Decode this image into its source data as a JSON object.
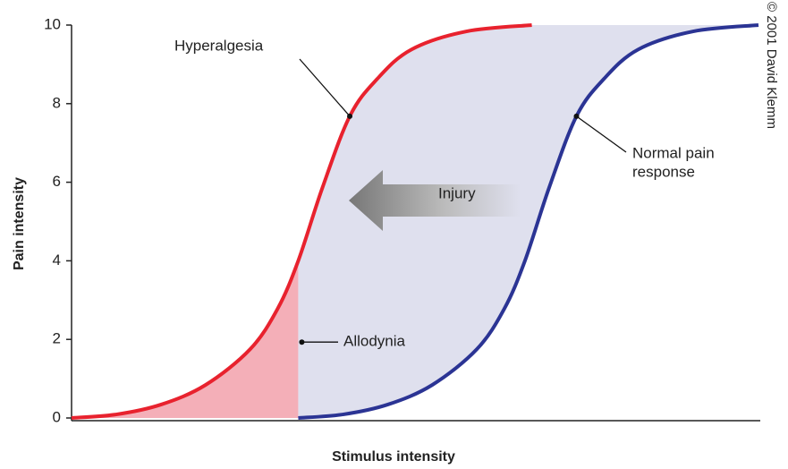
{
  "chart_data": {
    "type": "line",
    "ylabel": "Pain intensity",
    "xlabel": "Stimulus intensity",
    "credit": "© 2001 David Klemm",
    "xlim": [
      0,
      100
    ],
    "ylim": [
      0,
      10
    ],
    "yticks": [
      0,
      2,
      4,
      6,
      8,
      10
    ],
    "series": [
      {
        "name": "Hyperalgesia",
        "color": "#e8222e",
        "x": [
          0,
          6.5,
          13,
          19.5,
          26,
          30,
          33,
          36.5,
          40.5,
          44.5,
          49.5,
          57.5,
          67
        ],
        "values": [
          0,
          0.09,
          0.34,
          0.84,
          1.75,
          2.78,
          4.0,
          5.85,
          7.68,
          8.63,
          9.38,
          9.84,
          10
        ]
      },
      {
        "name": [
          "Normal pain",
          "response"
        ],
        "color": "#2b3494",
        "x": [
          33,
          39.5,
          46,
          52.5,
          59,
          63,
          66,
          69.5,
          73.5,
          77.5,
          82.5,
          90.5,
          100
        ],
        "values": [
          0,
          0.09,
          0.34,
          0.84,
          1.75,
          2.78,
          4.0,
          5.85,
          7.68,
          8.63,
          9.38,
          9.84,
          10
        ]
      }
    ],
    "annotations": [
      {
        "text": "Allodynia"
      },
      {
        "text": "Injury"
      }
    ],
    "colors": {
      "between": "#dfe0ee",
      "allodynia": "#f4afb8"
    }
  }
}
